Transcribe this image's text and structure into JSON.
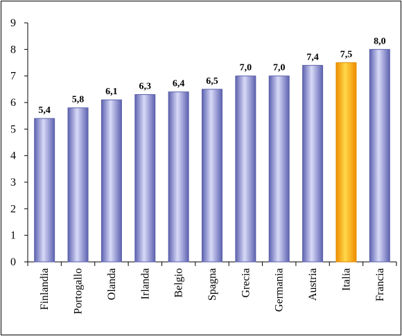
{
  "chart_data": {
    "type": "bar",
    "categories": [
      "Finlandia",
      "Portogallo",
      "Olanda",
      "Irlanda",
      "Belgio",
      "Spagna",
      "Grecia",
      "Germania",
      "Austria",
      "Italia",
      "Francia"
    ],
    "values": [
      5.4,
      5.8,
      6.1,
      6.3,
      6.4,
      6.5,
      7.0,
      7.0,
      7.4,
      7.5,
      8.0
    ],
    "value_labels": [
      "5,4",
      "5,8",
      "6,1",
      "6,3",
      "6,4",
      "6,5",
      "7,0",
      "7,0",
      "7,4",
      "7,5",
      "8,0"
    ],
    "y_ticks": [
      "0",
      "1",
      "2",
      "3",
      "4",
      "5",
      "6",
      "7",
      "8",
      "9"
    ],
    "ylim": [
      0,
      9
    ],
    "title": "",
    "xlabel": "",
    "ylabel": "",
    "grid": false,
    "legend": "none",
    "highlight_category": "Italia",
    "colors": {
      "bar": "#9a9ee0",
      "bar_edge": "#5a5fa8",
      "highlight": "#ffb200",
      "highlight_edge": "#e08a00"
    }
  }
}
